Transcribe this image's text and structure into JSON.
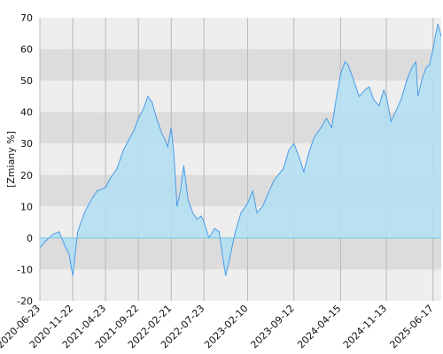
{
  "chart_data": {
    "type": "area",
    "ylabel": "[Zmiany %]",
    "ylim": [
      -20,
      70
    ],
    "yticks": [
      70,
      60,
      50,
      40,
      30,
      20,
      10,
      0,
      -10,
      -20
    ],
    "xlim": [
      "2020-06-23",
      "2025-07-25"
    ],
    "xticks": [
      "2020-06-23",
      "2020-11-22",
      "2021-04-23",
      "2021-09-22",
      "2022-02-21",
      "2022-07-23",
      "2023-02-10",
      "2023-09-12",
      "2024-04-15",
      "2024-11-13",
      "2025-06-17"
    ],
    "grid": true,
    "series": [
      {
        "x": [
          "2020-06-23",
          "2020-07-20",
          "2020-08-20",
          "2020-09-20",
          "2020-10-20",
          "2020-11-05",
          "2020-11-22",
          "2020-12-15",
          "2021-01-15",
          "2021-02-15",
          "2021-03-15",
          "2021-04-23",
          "2021-05-15",
          "2021-06-15",
          "2021-07-15",
          "2021-08-15",
          "2021-09-01",
          "2021-09-22",
          "2021-10-15",
          "2021-11-05",
          "2021-11-25",
          "2021-12-15",
          "2022-01-10",
          "2022-01-25",
          "2022-02-05",
          "2022-02-21",
          "2022-03-05",
          "2022-03-20",
          "2022-04-05",
          "2022-04-20",
          "2022-05-10",
          "2022-06-01",
          "2022-06-20",
          "2022-07-10",
          "2022-07-23",
          "2022-08-15",
          "2022-09-10",
          "2022-10-01",
          "2022-10-15",
          "2022-10-31",
          "2022-11-20",
          "2022-12-15",
          "2023-01-10",
          "2023-02-10",
          "2023-03-05",
          "2023-03-25",
          "2023-04-20",
          "2023-05-15",
          "2023-06-10",
          "2023-07-01",
          "2023-07-25",
          "2023-08-20",
          "2023-09-12",
          "2023-10-05",
          "2023-10-28",
          "2023-11-20",
          "2023-12-15",
          "2024-01-15",
          "2024-02-10",
          "2024-03-05",
          "2024-03-25",
          "2024-04-15",
          "2024-05-05",
          "2024-05-20",
          "2024-06-15",
          "2024-07-10",
          "2024-08-05",
          "2024-08-25",
          "2024-09-15",
          "2024-10-10",
          "2024-11-01",
          "2024-11-13",
          "2024-12-05",
          "2024-12-25",
          "2025-01-20",
          "2025-02-15",
          "2025-03-10",
          "2025-03-30",
          "2025-04-08",
          "2025-04-25",
          "2025-05-15",
          "2025-06-01",
          "2025-06-17",
          "2025-06-30",
          "2025-07-10",
          "2025-07-25"
        ],
        "y": [
          -3,
          -1,
          1,
          2,
          -3,
          -5,
          -12,
          2,
          8,
          12,
          15,
          16,
          19,
          22,
          28,
          32,
          34,
          38,
          41,
          45,
          43,
          38,
          33,
          31,
          29,
          35,
          27,
          10,
          15,
          23,
          12,
          8,
          6,
          7,
          5,
          0,
          3,
          2,
          -5,
          -12,
          -6,
          2,
          8,
          11,
          15,
          8,
          10,
          14,
          18,
          20,
          22,
          28,
          30,
          26,
          21,
          27,
          32,
          35,
          38,
          35,
          44,
          52,
          56,
          55,
          50,
          45,
          47,
          48,
          44,
          42,
          47,
          45,
          37,
          40,
          44,
          50,
          54,
          56,
          45,
          50,
          54,
          55,
          60,
          65,
          68,
          64
        ]
      }
    ]
  }
}
